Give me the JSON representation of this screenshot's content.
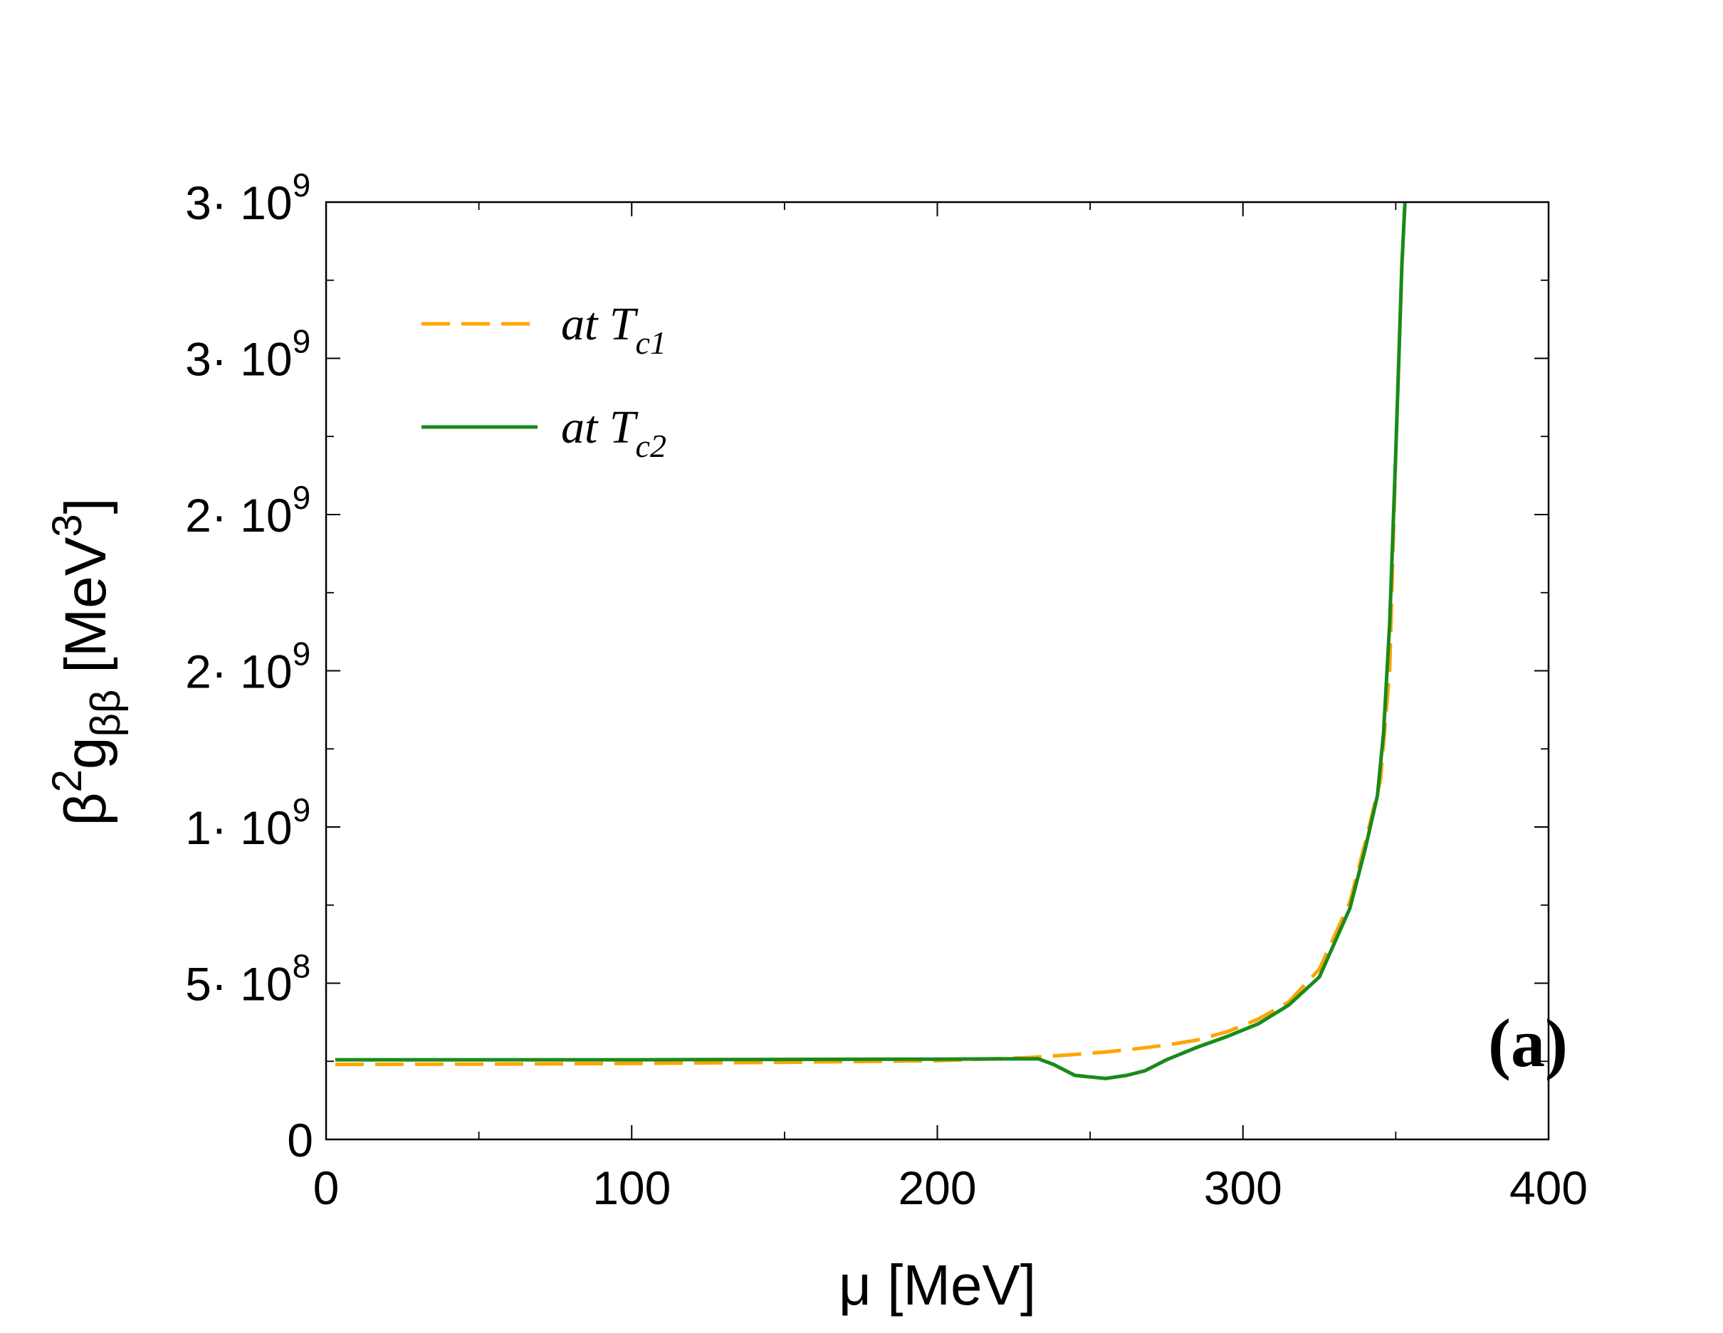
{
  "chart_data": {
    "type": "line",
    "title": "",
    "panel_label": "(a)",
    "xlabel": "μ [MeV]",
    "ylabel": {
      "base": "β",
      "base_sup": "2",
      "symbol": "g",
      "symbol_sub": "ββ",
      "unit_open": " [MeV",
      "unit_sup": "3",
      "unit_close": "]"
    },
    "xlim": [
      0,
      400
    ],
    "ylim": [
      0,
      3000000000
    ],
    "x_ticks": [
      {
        "value": 0,
        "label": "0"
      },
      {
        "value": 100,
        "label": "100"
      },
      {
        "value": 200,
        "label": "200"
      },
      {
        "value": 300,
        "label": "300"
      },
      {
        "value": 400,
        "label": "400"
      }
    ],
    "y_ticks": [
      {
        "value": 0,
        "label": "0",
        "mantissa": "0",
        "exp": ""
      },
      {
        "value": 500000000,
        "label": "5· 10^8",
        "mantissa": "5· 10",
        "exp": "8"
      },
      {
        "value": 1000000000,
        "label": "1· 10^9",
        "mantissa": "1· 10",
        "exp": "9"
      },
      {
        "value": 1500000000,
        "label": "2· 10^9",
        "mantissa": "2· 10",
        "exp": "9"
      },
      {
        "value": 2000000000,
        "label": "2· 10^9",
        "mantissa": "2· 10",
        "exp": "9"
      },
      {
        "value": 2500000000,
        "label": "3· 10^9",
        "mantissa": "3· 10",
        "exp": "9"
      },
      {
        "value": 3000000000,
        "label": "3· 10^9",
        "mantissa": "3· 10",
        "exp": "9"
      }
    ],
    "x_minor_step": 50,
    "y_minor_step": 250000000,
    "legend_position": "top-left",
    "grid": false,
    "series": [
      {
        "name": "at T_c1",
        "label_main": "at T",
        "label_sub": "c1",
        "color": "#FFA500",
        "dash": "dashed",
        "x": [
          3,
          50,
          100,
          150,
          200,
          230,
          245,
          255,
          265,
          275,
          285,
          295,
          305,
          315,
          325,
          335,
          340,
          345,
          348,
          350,
          352,
          353
        ],
        "y": [
          240000000,
          241000000,
          243000000,
          247000000,
          252000000,
          262000000,
          272000000,
          280000000,
          290000000,
          302000000,
          318000000,
          345000000,
          385000000,
          440000000,
          545000000,
          760000000,
          950000000,
          1150000000,
          1500000000,
          2200000000,
          2800000000,
          3000000000
        ]
      },
      {
        "name": "at T_c2",
        "label_main": "at T",
        "label_sub": "c2",
        "color": "#1A8A1A",
        "dash": "solid",
        "x": [
          3,
          50,
          100,
          150,
          200,
          225,
          233,
          238,
          245,
          250,
          255,
          262,
          268,
          275,
          285,
          295,
          305,
          315,
          325,
          335,
          340,
          344,
          346,
          348,
          350,
          352,
          353
        ],
        "y": [
          255000000,
          255000000,
          255000000,
          256000000,
          257000000,
          258000000,
          258000000,
          240000000,
          205000000,
          200000000,
          195000000,
          205000000,
          220000000,
          255000000,
          295000000,
          330000000,
          370000000,
          430000000,
          520000000,
          740000000,
          930000000,
          1100000000,
          1300000000,
          1650000000,
          2200000000,
          2800000000,
          3000000000
        ]
      }
    ]
  }
}
